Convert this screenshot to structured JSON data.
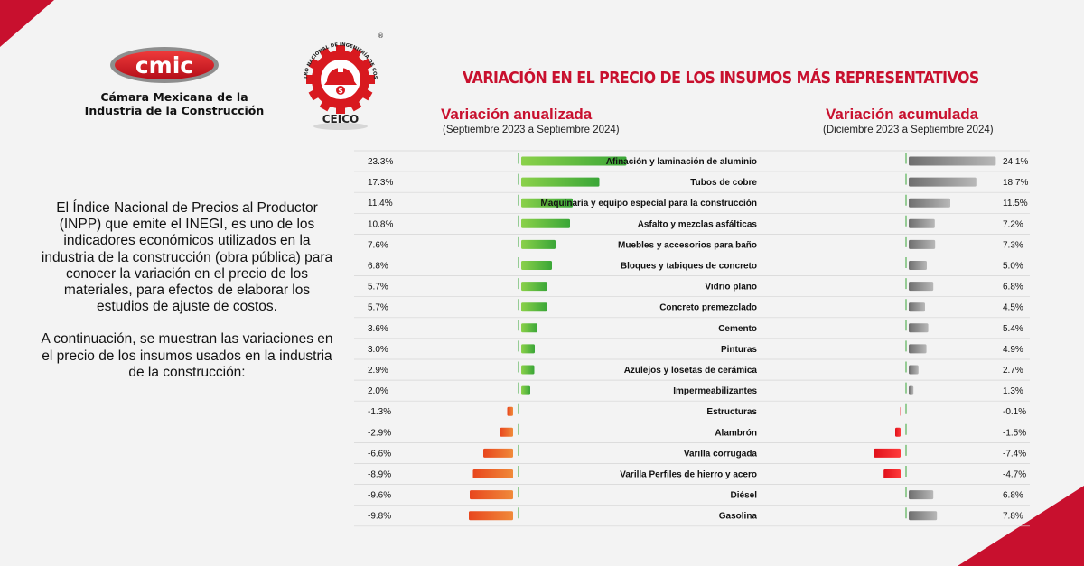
{
  "header": {
    "cmic_logo_text": "cmic",
    "cmic_name_line1": "Cámara Mexicana de la",
    "cmic_name_line2": "Industria de la Construcción",
    "ceico_logo_text": "CEICO",
    "ceico_ring_text": "CENTRO NACIONAL DE INGENIERÍA DE COSTOS",
    "ceico_registered": "®",
    "title": "VARIACIÓN EN EL PRECIO DE LOS INSUMOS MÁS REPRESENTATIVOS"
  },
  "description": {
    "paragraph1": "El Índice Nacional de Precios al Productor (INPP) que emite el INEGI, es uno de los indicadores económicos utilizados en la industria de la construcción (obra pública) para conocer la variación en el precio de los materiales, para efectos de elaborar los estudios de ajuste de costos.",
    "paragraph2": "A continuación, se muestran las variaciones en el precio de los insumos usados en la industria de la construcción:"
  },
  "colors": {
    "accent_red": "#c8102e",
    "positive_annual": "#3aa637",
    "negative_annual": "#e8461d",
    "positive_cumulative": "#6e6e6e",
    "negative_cumulative": "#e0101a"
  },
  "chart_data": {
    "type": "bar",
    "orientation": "horizontal",
    "categories": [
      "Afinación y laminación de aluminio",
      "Tubos de cobre",
      "Maquinaria y equipo especial para la construcción",
      "Asfalto y mezclas asfálticas",
      "Muebles y accesorios para baño",
      "Bloques y tabiques de concreto",
      "Vidrio plano",
      "Concreto premezclado",
      "Cemento",
      "Pinturas",
      "Azulejos y losetas de cerámica",
      "Impermeabilizantes",
      "Estructuras",
      "Alambrón",
      "Varilla corrugada",
      "Varilla Perfiles de hierro y acero",
      "Diésel",
      "Gasolina"
    ],
    "series": [
      {
        "name": "Variación anualizada",
        "period": "(Septiembre 2023 a Septiembre 2024)",
        "values": [
          23.3,
          17.3,
          11.4,
          10.8,
          7.6,
          6.8,
          5.7,
          5.7,
          3.6,
          3.0,
          2.9,
          2.0,
          -1.3,
          -2.9,
          -6.6,
          -8.9,
          -9.6,
          -9.8
        ],
        "labels": [
          "23.3%",
          "17.3%",
          "11.4%",
          "10.8%",
          "7.6%",
          "6.8%",
          "5.7%",
          "5.7%",
          "3.6%",
          "3.0%",
          "2.9%",
          "2.0%",
          "-1.3%",
          "-2.9%",
          "-6.6%",
          "-8.9%",
          "-9.6%",
          "-9.8%"
        ]
      },
      {
        "name": "Variación acumulada",
        "period": "(Diciembre 2023 a Septiembre 2024)",
        "values": [
          24.1,
          18.7,
          11.5,
          7.2,
          7.3,
          5.0,
          6.8,
          4.5,
          5.4,
          4.9,
          2.7,
          1.3,
          -0.1,
          -1.5,
          -7.4,
          -4.7,
          6.8,
          7.8
        ],
        "labels": [
          "24.1%",
          "18.7%",
          "11.5%",
          "7.2%",
          "7.3%",
          "5.0%",
          "6.8%",
          "4.5%",
          "5.4%",
          "4.9%",
          "2.7%",
          "1.3%",
          "-0.1%",
          "-1.5%",
          "-7.4%",
          "-4.7%",
          "6.8%",
          "7.8%"
        ]
      }
    ],
    "unit": "%",
    "grid": false,
    "legend": "none"
  }
}
